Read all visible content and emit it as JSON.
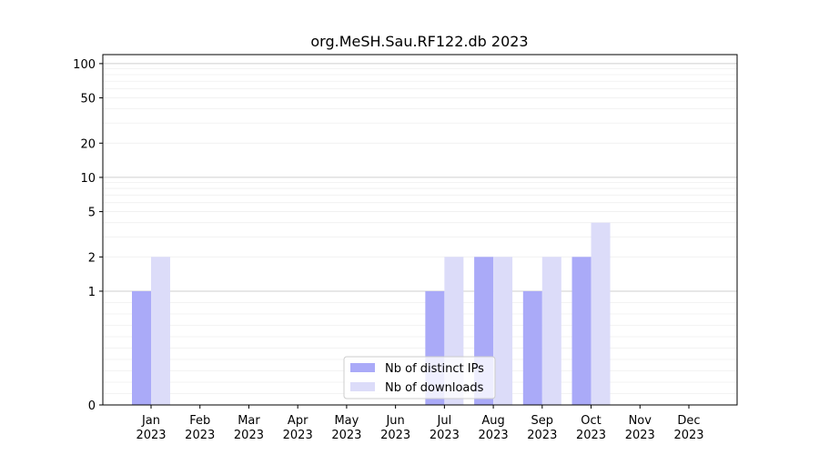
{
  "chart_data": {
    "type": "bar",
    "title": "org.MeSH.Sau.RF122.db 2023",
    "xlabel": "",
    "ylabel": "",
    "categories": [
      [
        "Jan",
        "2023"
      ],
      [
        "Feb",
        "2023"
      ],
      [
        "Mar",
        "2023"
      ],
      [
        "Apr",
        "2023"
      ],
      [
        "May",
        "2023"
      ],
      [
        "Jun",
        "2023"
      ],
      [
        "Jul",
        "2023"
      ],
      [
        "Aug",
        "2023"
      ],
      [
        "Sep",
        "2023"
      ],
      [
        "Oct",
        "2023"
      ],
      [
        "Nov",
        "2023"
      ],
      [
        "Dec",
        "2023"
      ]
    ],
    "yscale": "symlog",
    "ylim": [
      0,
      120
    ],
    "yticks": [
      0,
      1,
      2,
      5,
      10,
      20,
      50,
      100
    ],
    "ytick_labels": [
      "0",
      "1",
      "2",
      "5",
      "10",
      "20",
      "50",
      "100"
    ],
    "grid": true,
    "legend_position": "lower-center",
    "series": [
      {
        "name": "Nb of distinct IPs",
        "color": "#aaaaf8",
        "values": [
          1,
          0,
          0,
          0,
          0,
          0,
          1,
          2,
          1,
          2,
          0,
          0
        ]
      },
      {
        "name": "Nb of downloads",
        "color": "#dcdcf9",
        "values": [
          2,
          0,
          0,
          0,
          0,
          0,
          2,
          2,
          2,
          4,
          0,
          0
        ]
      }
    ]
  }
}
